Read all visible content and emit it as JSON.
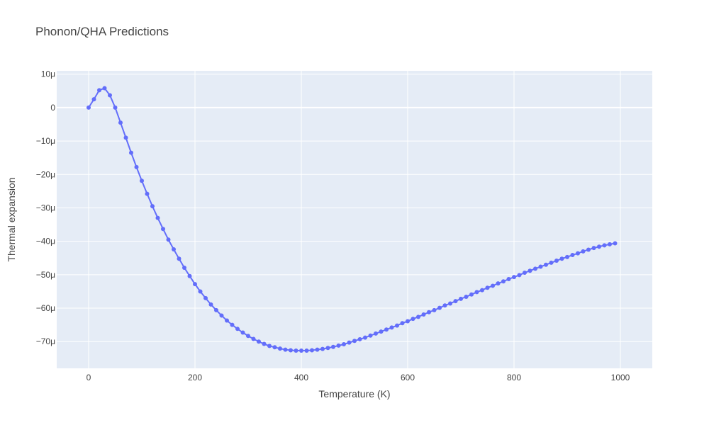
{
  "chart_data": {
    "type": "scatter",
    "title": "Phonon/QHA Predictions",
    "xlabel": "Temperature (K)",
    "ylabel": "Thermal expansion",
    "xlim": [
      -60,
      1060
    ],
    "ylim": [
      -7.8e-05,
      1.1e-05
    ],
    "x_ticks": [
      0,
      200,
      400,
      600,
      800,
      1000
    ],
    "x_tick_labels": [
      "0",
      "200",
      "400",
      "600",
      "800",
      "1000"
    ],
    "y_ticks": [
      1e-05,
      0,
      -1e-05,
      -2e-05,
      -3e-05,
      -4e-05,
      -5e-05,
      -6e-05,
      -7e-05
    ],
    "y_tick_labels": [
      "10μ",
      "0",
      "−10μ",
      "−20μ",
      "−30μ",
      "−40μ",
      "−50μ",
      "−60μ",
      "−70μ"
    ],
    "grid": true,
    "mode": "lines+markers",
    "colors": {
      "series": "#636efa",
      "plot_bg": "#e5ecf6",
      "grid": "#ffffff",
      "text": "#444444"
    },
    "series": [
      {
        "x": [
          0,
          10,
          20,
          30,
          40,
          50,
          60,
          70,
          80,
          90,
          100,
          110,
          120,
          130,
          140,
          150,
          160,
          170,
          180,
          190,
          200,
          210,
          220,
          230,
          240,
          250,
          260,
          270,
          280,
          290,
          300,
          310,
          320,
          330,
          340,
          350,
          360,
          370,
          380,
          390,
          400,
          410,
          420,
          430,
          440,
          450,
          460,
          470,
          480,
          490,
          500,
          510,
          520,
          530,
          540,
          550,
          560,
          570,
          580,
          590,
          600,
          610,
          620,
          630,
          640,
          650,
          660,
          670,
          680,
          690,
          700,
          710,
          720,
          730,
          740,
          750,
          760,
          770,
          780,
          790,
          800,
          810,
          820,
          830,
          840,
          850,
          860,
          870,
          880,
          890,
          900,
          910,
          920,
          930,
          940,
          950,
          960,
          970,
          980,
          990
        ],
        "y": [
          0,
          2.5e-06,
          5.2e-06,
          5.8e-06,
          3.7e-06,
          0,
          -4.5e-06,
          -9e-06,
          -1.35e-05,
          -1.78e-05,
          -2.19e-05,
          -2.58e-05,
          -2.95e-05,
          -3.3e-05,
          -3.63e-05,
          -3.95e-05,
          -4.24e-05,
          -4.52e-05,
          -4.79e-05,
          -5.04e-05,
          -5.28e-05,
          -5.5e-05,
          -5.7e-05,
          -5.89e-05,
          -6.06e-05,
          -6.22e-05,
          -6.37e-05,
          -6.5e-05,
          -6.62e-05,
          -6.73e-05,
          -6.83e-05,
          -6.92e-05,
          -7e-05,
          -7.07e-05,
          -7.13e-05,
          -7.17e-05,
          -7.21e-05,
          -7.24e-05,
          -7.26e-05,
          -7.27e-05,
          -7.27e-05,
          -7.27e-05,
          -7.26e-05,
          -7.24e-05,
          -7.22e-05,
          -7.19e-05,
          -7.16e-05,
          -7.12e-05,
          -7.08e-05,
          -7.03e-05,
          -6.98e-05,
          -6.93e-05,
          -6.88e-05,
          -6.82e-05,
          -6.76e-05,
          -6.7e-05,
          -6.64e-05,
          -6.58e-05,
          -6.52e-05,
          -6.45e-05,
          -6.39e-05,
          -6.32e-05,
          -6.26e-05,
          -6.19e-05,
          -6.12e-05,
          -6.06e-05,
          -5.99e-05,
          -5.92e-05,
          -5.86e-05,
          -5.79e-05,
          -5.72e-05,
          -5.66e-05,
          -5.59e-05,
          -5.52e-05,
          -5.46e-05,
          -5.39e-05,
          -5.33e-05,
          -5.26e-05,
          -5.2e-05,
          -5.13e-05,
          -5.07e-05,
          -5.01e-05,
          -4.94e-05,
          -4.88e-05,
          -4.82e-05,
          -4.76e-05,
          -4.7e-05,
          -4.64e-05,
          -4.58e-05,
          -4.52e-05,
          -4.47e-05,
          -4.41e-05,
          -4.36e-05,
          -4.3e-05,
          -4.25e-05,
          -4.2e-05,
          -4.16e-05,
          -4.12e-05,
          -4.09e-05,
          -4.06e-05
        ]
      }
    ]
  }
}
